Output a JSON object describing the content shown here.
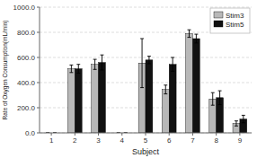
{
  "chart_data": {
    "type": "bar",
    "xlabel": "Subject",
    "ylabel": "Rate of Oxygen Consumption(mL/min)",
    "x": [
      1,
      2,
      3,
      4,
      5,
      6,
      7,
      8,
      9
    ],
    "series": [
      {
        "name": "Stim3",
        "color": "#b8b8b8",
        "values": [
          0,
          510,
          545,
          0,
          555,
          345,
          790,
          270,
          75
        ],
        "errors": [
          0,
          30,
          40,
          0,
          195,
          35,
          30,
          50,
          20
        ]
      },
      {
        "name": "Stim5",
        "color": "#111111",
        "values": [
          0,
          510,
          560,
          0,
          580,
          545,
          750,
          280,
          110
        ],
        "errors": [
          0,
          35,
          60,
          0,
          30,
          55,
          35,
          55,
          30
        ]
      }
    ],
    "xlim": [
      0.5,
      9.5
    ],
    "xticks": [
      1,
      2,
      3,
      4,
      5,
      6,
      7,
      8,
      9
    ],
    "ylim": [
      0,
      1000
    ],
    "yticks": [
      {
        "value": 0.0,
        "label": "0.0"
      },
      {
        "value": 200.0,
        "label": "200.0"
      },
      {
        "value": 400.0,
        "label": "400.0"
      },
      {
        "value": 600.0,
        "label": "600.0"
      },
      {
        "value": 800.0,
        "label": "800.0"
      },
      {
        "value": 1000.0,
        "label": "1000.0"
      }
    ],
    "grid": true,
    "legend": "upper-right"
  }
}
